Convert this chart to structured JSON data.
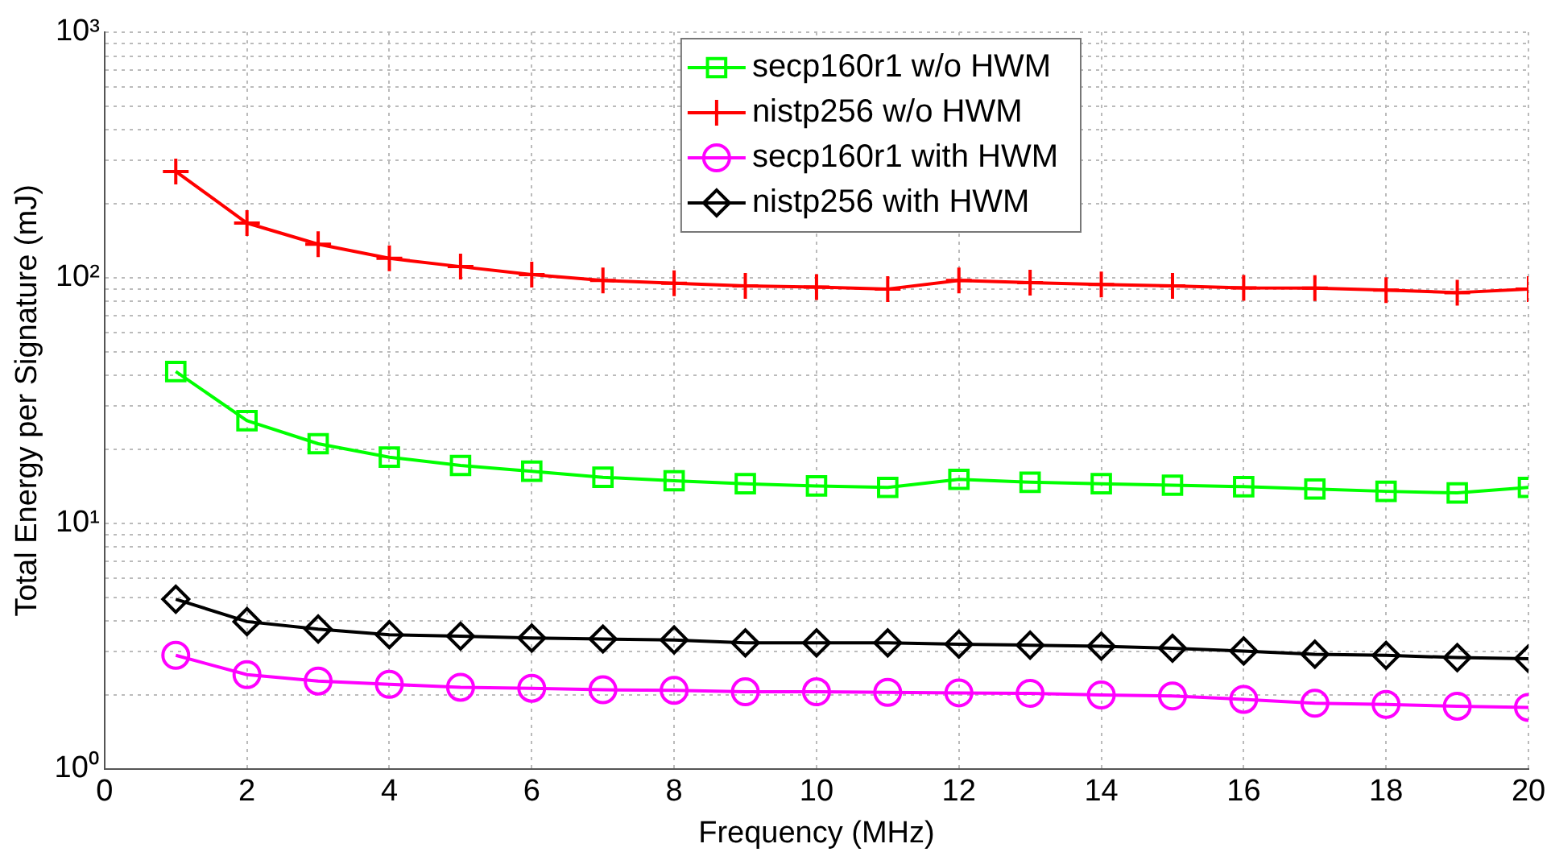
{
  "chart_data": {
    "type": "line",
    "xlabel": "Frequency (MHz)",
    "ylabel": "Total Energy per Signature (mJ)",
    "x": [
      1,
      2,
      3,
      4,
      5,
      6,
      7,
      8,
      9,
      10,
      11,
      12,
      13,
      14,
      15,
      16,
      17,
      18,
      19,
      20
    ],
    "series": [
      {
        "name": "secp160r1 w/o HWM",
        "color": "#00ff00",
        "marker": "square",
        "values": [
          41.5,
          26.2,
          21.1,
          18.6,
          17.2,
          16.3,
          15.4,
          14.9,
          14.5,
          14.2,
          14.0,
          15.1,
          14.7,
          14.5,
          14.3,
          14.1,
          13.8,
          13.5,
          13.3,
          14.0
        ]
      },
      {
        "name": "nistp256 w/o HWM",
        "color": "#ff0000",
        "marker": "cross",
        "values": [
          271,
          167,
          137,
          120,
          111,
          103,
          97.5,
          95,
          92.6,
          91.6,
          90,
          97.5,
          95.5,
          94,
          92.6,
          91,
          90.8,
          89,
          87,
          90
        ]
      },
      {
        "name": "secp160r1 with HWM",
        "color": "#ff00ff",
        "marker": "circle",
        "values": [
          2.9,
          2.42,
          2.28,
          2.21,
          2.15,
          2.13,
          2.1,
          2.09,
          2.06,
          2.06,
          2.05,
          2.04,
          2.03,
          2.0,
          1.98,
          1.92,
          1.85,
          1.83,
          1.8,
          1.78
        ]
      },
      {
        "name": "nistp256 with HWM",
        "color": "#000000",
        "marker": "diamond",
        "values": [
          4.91,
          3.98,
          3.71,
          3.52,
          3.47,
          3.41,
          3.38,
          3.35,
          3.26,
          3.26,
          3.26,
          3.22,
          3.19,
          3.16,
          3.1,
          3.02,
          2.93,
          2.9,
          2.84,
          2.81
        ]
      }
    ],
    "xlim": [
      0,
      20
    ],
    "xticks": [
      0,
      2,
      4,
      6,
      8,
      10,
      12,
      14,
      16,
      18,
      20
    ],
    "log": true,
    "ylim": [
      1,
      1000
    ],
    "yticks": [
      {
        "value": 1,
        "label": "10⁰"
      },
      {
        "value": 2,
        "label": null
      },
      {
        "value": 3,
        "label": null
      },
      {
        "value": 4,
        "label": null
      },
      {
        "value": 5,
        "label": null
      },
      {
        "value": 6,
        "label": null
      },
      {
        "value": 7,
        "label": null
      },
      {
        "value": 8,
        "label": null
      },
      {
        "value": 9,
        "label": null
      },
      {
        "value": 10,
        "label": "10¹"
      },
      {
        "value": 20,
        "label": null
      },
      {
        "value": 30,
        "label": null
      },
      {
        "value": 40,
        "label": null
      },
      {
        "value": 50,
        "label": null
      },
      {
        "value": 60,
        "label": null
      },
      {
        "value": 70,
        "label": null
      },
      {
        "value": 80,
        "label": null
      },
      {
        "value": 90,
        "label": null
      },
      {
        "value": 100,
        "label": "10²"
      },
      {
        "value": 200,
        "label": null
      },
      {
        "value": 300,
        "label": null
      },
      {
        "value": 400,
        "label": null
      },
      {
        "value": 500,
        "label": null
      },
      {
        "value": 600,
        "label": null
      },
      {
        "value": 700,
        "label": null
      },
      {
        "value": 800,
        "label": null
      },
      {
        "value": 900,
        "label": null
      },
      {
        "value": 1000,
        "label": "10³"
      }
    ],
    "grid": true,
    "legend": "top",
    "line_style": "solid"
  }
}
